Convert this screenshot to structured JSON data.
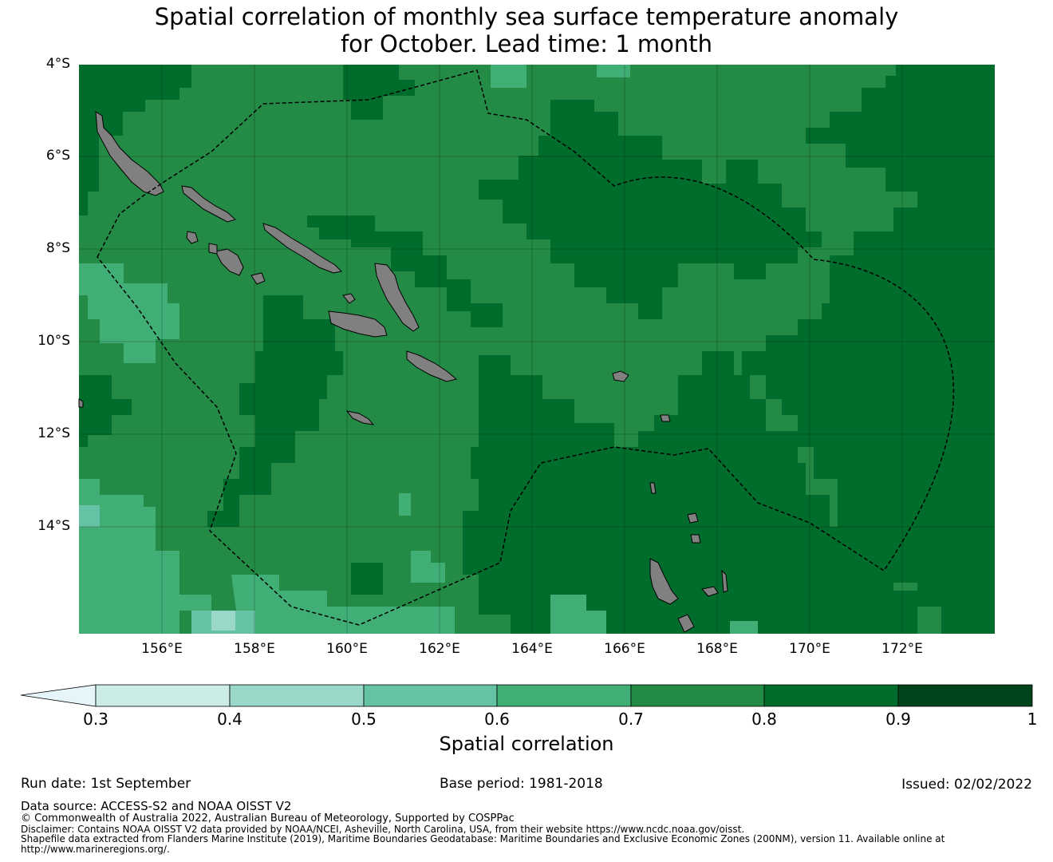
{
  "title": {
    "line1": "Spatial correlation of monthly sea surface temperature anomaly",
    "line2": "for October. Lead time: 1 month"
  },
  "map": {
    "lat_ticks": [
      "4°S",
      "6°S",
      "8°S",
      "10°S",
      "12°S",
      "14°S"
    ],
    "lon_ticks": [
      "156°E",
      "158°E",
      "160°E",
      "162°E",
      "164°E",
      "166°E",
      "168°E",
      "170°E",
      "172°E"
    ],
    "extent": {
      "lon_min": 154.2,
      "lon_max": 174.0,
      "lat_max": -4.0,
      "lat_min": -16.3
    },
    "land_color": "#808080",
    "boundary_style": "dashed black"
  },
  "colorbar": {
    "ticks": [
      "0.3",
      "0.4",
      "0.5",
      "0.6",
      "0.7",
      "0.8",
      "0.9",
      "1"
    ],
    "label": "Spatial correlation",
    "colors": [
      "#e5f5f9",
      "#ccece6",
      "#99d8c9",
      "#66c2a4",
      "#41ae76",
      "#238b45",
      "#006d2c",
      "#00441b"
    ],
    "extend": "min"
  },
  "footer": {
    "run_date": "Run date: 1st September",
    "base_period": "Base period: 1981-2018",
    "issued": "Issued: 02/02/2022",
    "data_source": "Data source: ACCESS-S2 and NOAA OISST V2",
    "copyright": "© Commonwealth of Australia 2022, Australian Bureau of Meteorology, Supported by COSPPac",
    "disclaimer": "Disclaimer: Contains NOAA OISST V2 data provided by NOAA/NCEI, Asheville, North Carolina, USA, from their website https://www.ncdc.noaa.gov/oisst.",
    "shapefile_1": "Shapefile data extracted from Flanders Marine Institute (2019), Maritime Boundaries Geodatabase: Maritime Boundaries and Exclusive Economic Zones (200NM), version 11. Available online at",
    "shapefile_2": "http://www.marineregions.org/."
  }
}
